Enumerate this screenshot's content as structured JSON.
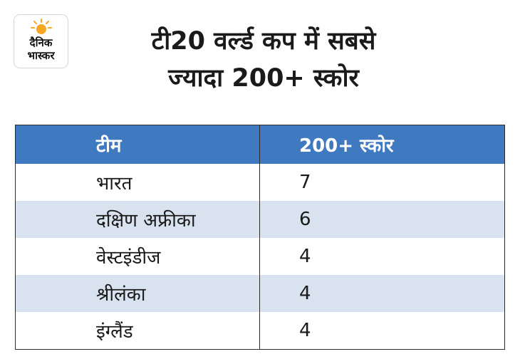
{
  "brand": {
    "line1": "दैनिक",
    "line2": "भास्कर",
    "sun_color": "#f5a623"
  },
  "title": {
    "line1": "टी20 वर्ल्ड कप में सबसे",
    "line2": "ज्यादा 200+ स्कोर"
  },
  "table": {
    "headers": [
      "टीम",
      "200+ स्कोर"
    ],
    "rows": [
      {
        "team": "भारत",
        "score": "7"
      },
      {
        "team": "दक्षिण अफ्रीका",
        "score": "6"
      },
      {
        "team": "वेस्टइंडीज",
        "score": "4"
      },
      {
        "team": "श्रीलंका",
        "score": "4"
      },
      {
        "team": "इंग्लैंड",
        "score": "4"
      }
    ],
    "header_color": "#3f79c0",
    "alt_row_color": "#d9e3f0"
  },
  "chart_data": {
    "type": "table",
    "title": "टी20 वर्ल्ड कप में सबसे ज्यादा 200+ स्कोर",
    "columns": [
      "टीम",
      "200+ स्कोर"
    ],
    "categories": [
      "भारत",
      "दक्षिण अफ्रीका",
      "वेस्टइंडीज",
      "श्रीलंका",
      "इंग्लैंड"
    ],
    "values": [
      7,
      6,
      4,
      4,
      4
    ]
  }
}
